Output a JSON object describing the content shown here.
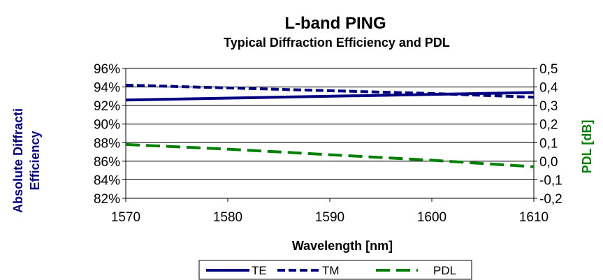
{
  "chart_data": {
    "type": "line",
    "title": "L-band PING",
    "subtitle": "Typical Diffraction Efficiency and PDL",
    "xlabel": "Wavelength [nm]",
    "ylabel_left": [
      "Absolute Diffracti",
      "Efficiency"
    ],
    "ylabel_right": "PDL [dB]",
    "xlim": [
      1570,
      1610
    ],
    "ylim_left": [
      82,
      96
    ],
    "ylim_right": [
      -0.2,
      0.5
    ],
    "x_ticks": [
      "1570",
      "1580",
      "1590",
      "1600",
      "1610"
    ],
    "y_left_ticks": [
      "82%",
      "84%",
      "86%",
      "88%",
      "90%",
      "92%",
      "94%",
      "96%"
    ],
    "y_right_ticks": [
      "-0,2",
      "-0,1",
      "0,0",
      "0,1",
      "0,2",
      "0,3",
      "0,4",
      "0,5"
    ],
    "grid": "horizontal",
    "legend_position": "bottom",
    "series": [
      {
        "name": "TE",
        "axis": "left",
        "color": "#000080",
        "dash": "solid",
        "x": [
          1570,
          1610
        ],
        "values": [
          92.6,
          93.4
        ]
      },
      {
        "name": "TM",
        "axis": "left",
        "color": "#000080",
        "dash": "short",
        "x": [
          1570,
          1580,
          1590,
          1600,
          1610
        ],
        "values": [
          94.2,
          93.9,
          93.6,
          93.3,
          92.9
        ]
      },
      {
        "name": "PDL",
        "axis": "right",
        "color": "#008000",
        "dash": "long",
        "x": [
          1570,
          1580,
          1590,
          1600,
          1610
        ],
        "values": [
          0.09,
          0.065,
          0.035,
          0.005,
          -0.03
        ]
      }
    ]
  },
  "legend": {
    "items": [
      "TE",
      "TM",
      "PDL"
    ]
  }
}
